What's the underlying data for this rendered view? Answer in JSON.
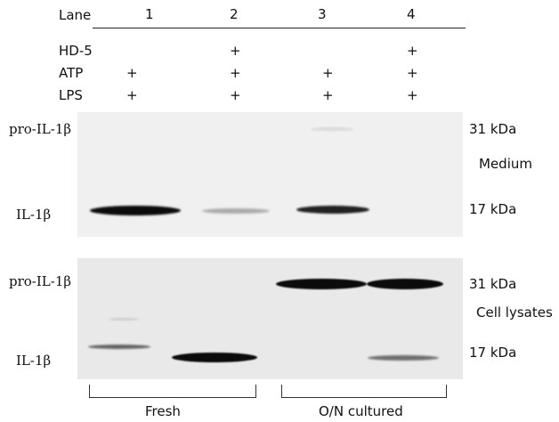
{
  "header": {
    "lane_label": "Lane",
    "lanes": [
      "1",
      "2",
      "3",
      "4"
    ]
  },
  "conditions": [
    {
      "label": "HD-5",
      "marks": [
        "",
        "+",
        "",
        "+"
      ]
    },
    {
      "label": "ATP",
      "marks": [
        "+",
        "+",
        "+",
        "+"
      ]
    },
    {
      "label": "LPS",
      "marks": [
        "+",
        "+",
        "+",
        "+"
      ]
    }
  ],
  "medium_panel": {
    "label": "Medium",
    "left_labels": {
      "pro": "pro-IL-1β",
      "mature": "IL-1β"
    },
    "right_labels": {
      "upper": "31 kDa",
      "lower": "17 kDa"
    },
    "bands": [
      {
        "lane": 1,
        "form": "IL-1β",
        "intensity": 1.0
      },
      {
        "lane": 2,
        "form": "IL-1β",
        "intensity": 0.3
      },
      {
        "lane": 3,
        "form": "IL-1β",
        "intensity": 0.9
      },
      {
        "lane": 3,
        "form": "pro-IL-1β",
        "intensity": 0.1
      }
    ]
  },
  "lysate_panel": {
    "label": "Cell lysates",
    "left_labels": {
      "pro": "pro-IL-1β",
      "mature": "IL-1β"
    },
    "right_labels": {
      "upper": "31 kDa",
      "lower": "17 kDa"
    },
    "bands": [
      {
        "lane": 1,
        "form": "IL-1β",
        "intensity": 0.6
      },
      {
        "lane": 2,
        "form": "IL-1β",
        "intensity": 1.0
      },
      {
        "lane": 3,
        "form": "pro-IL-1β",
        "intensity": 1.0
      },
      {
        "lane": 4,
        "form": "pro-IL-1β",
        "intensity": 1.0
      },
      {
        "lane": 4,
        "form": "IL-1β",
        "intensity": 0.55
      }
    ]
  },
  "groups": [
    {
      "label": "Fresh",
      "lanes": [
        1,
        2
      ]
    },
    {
      "label": "O/N cultured",
      "lanes": [
        3,
        4
      ]
    }
  ],
  "colors": {
    "band": "#0b0b0b",
    "blot_background": "#f0f0f0",
    "lysate_background": "#e9e9e9"
  }
}
